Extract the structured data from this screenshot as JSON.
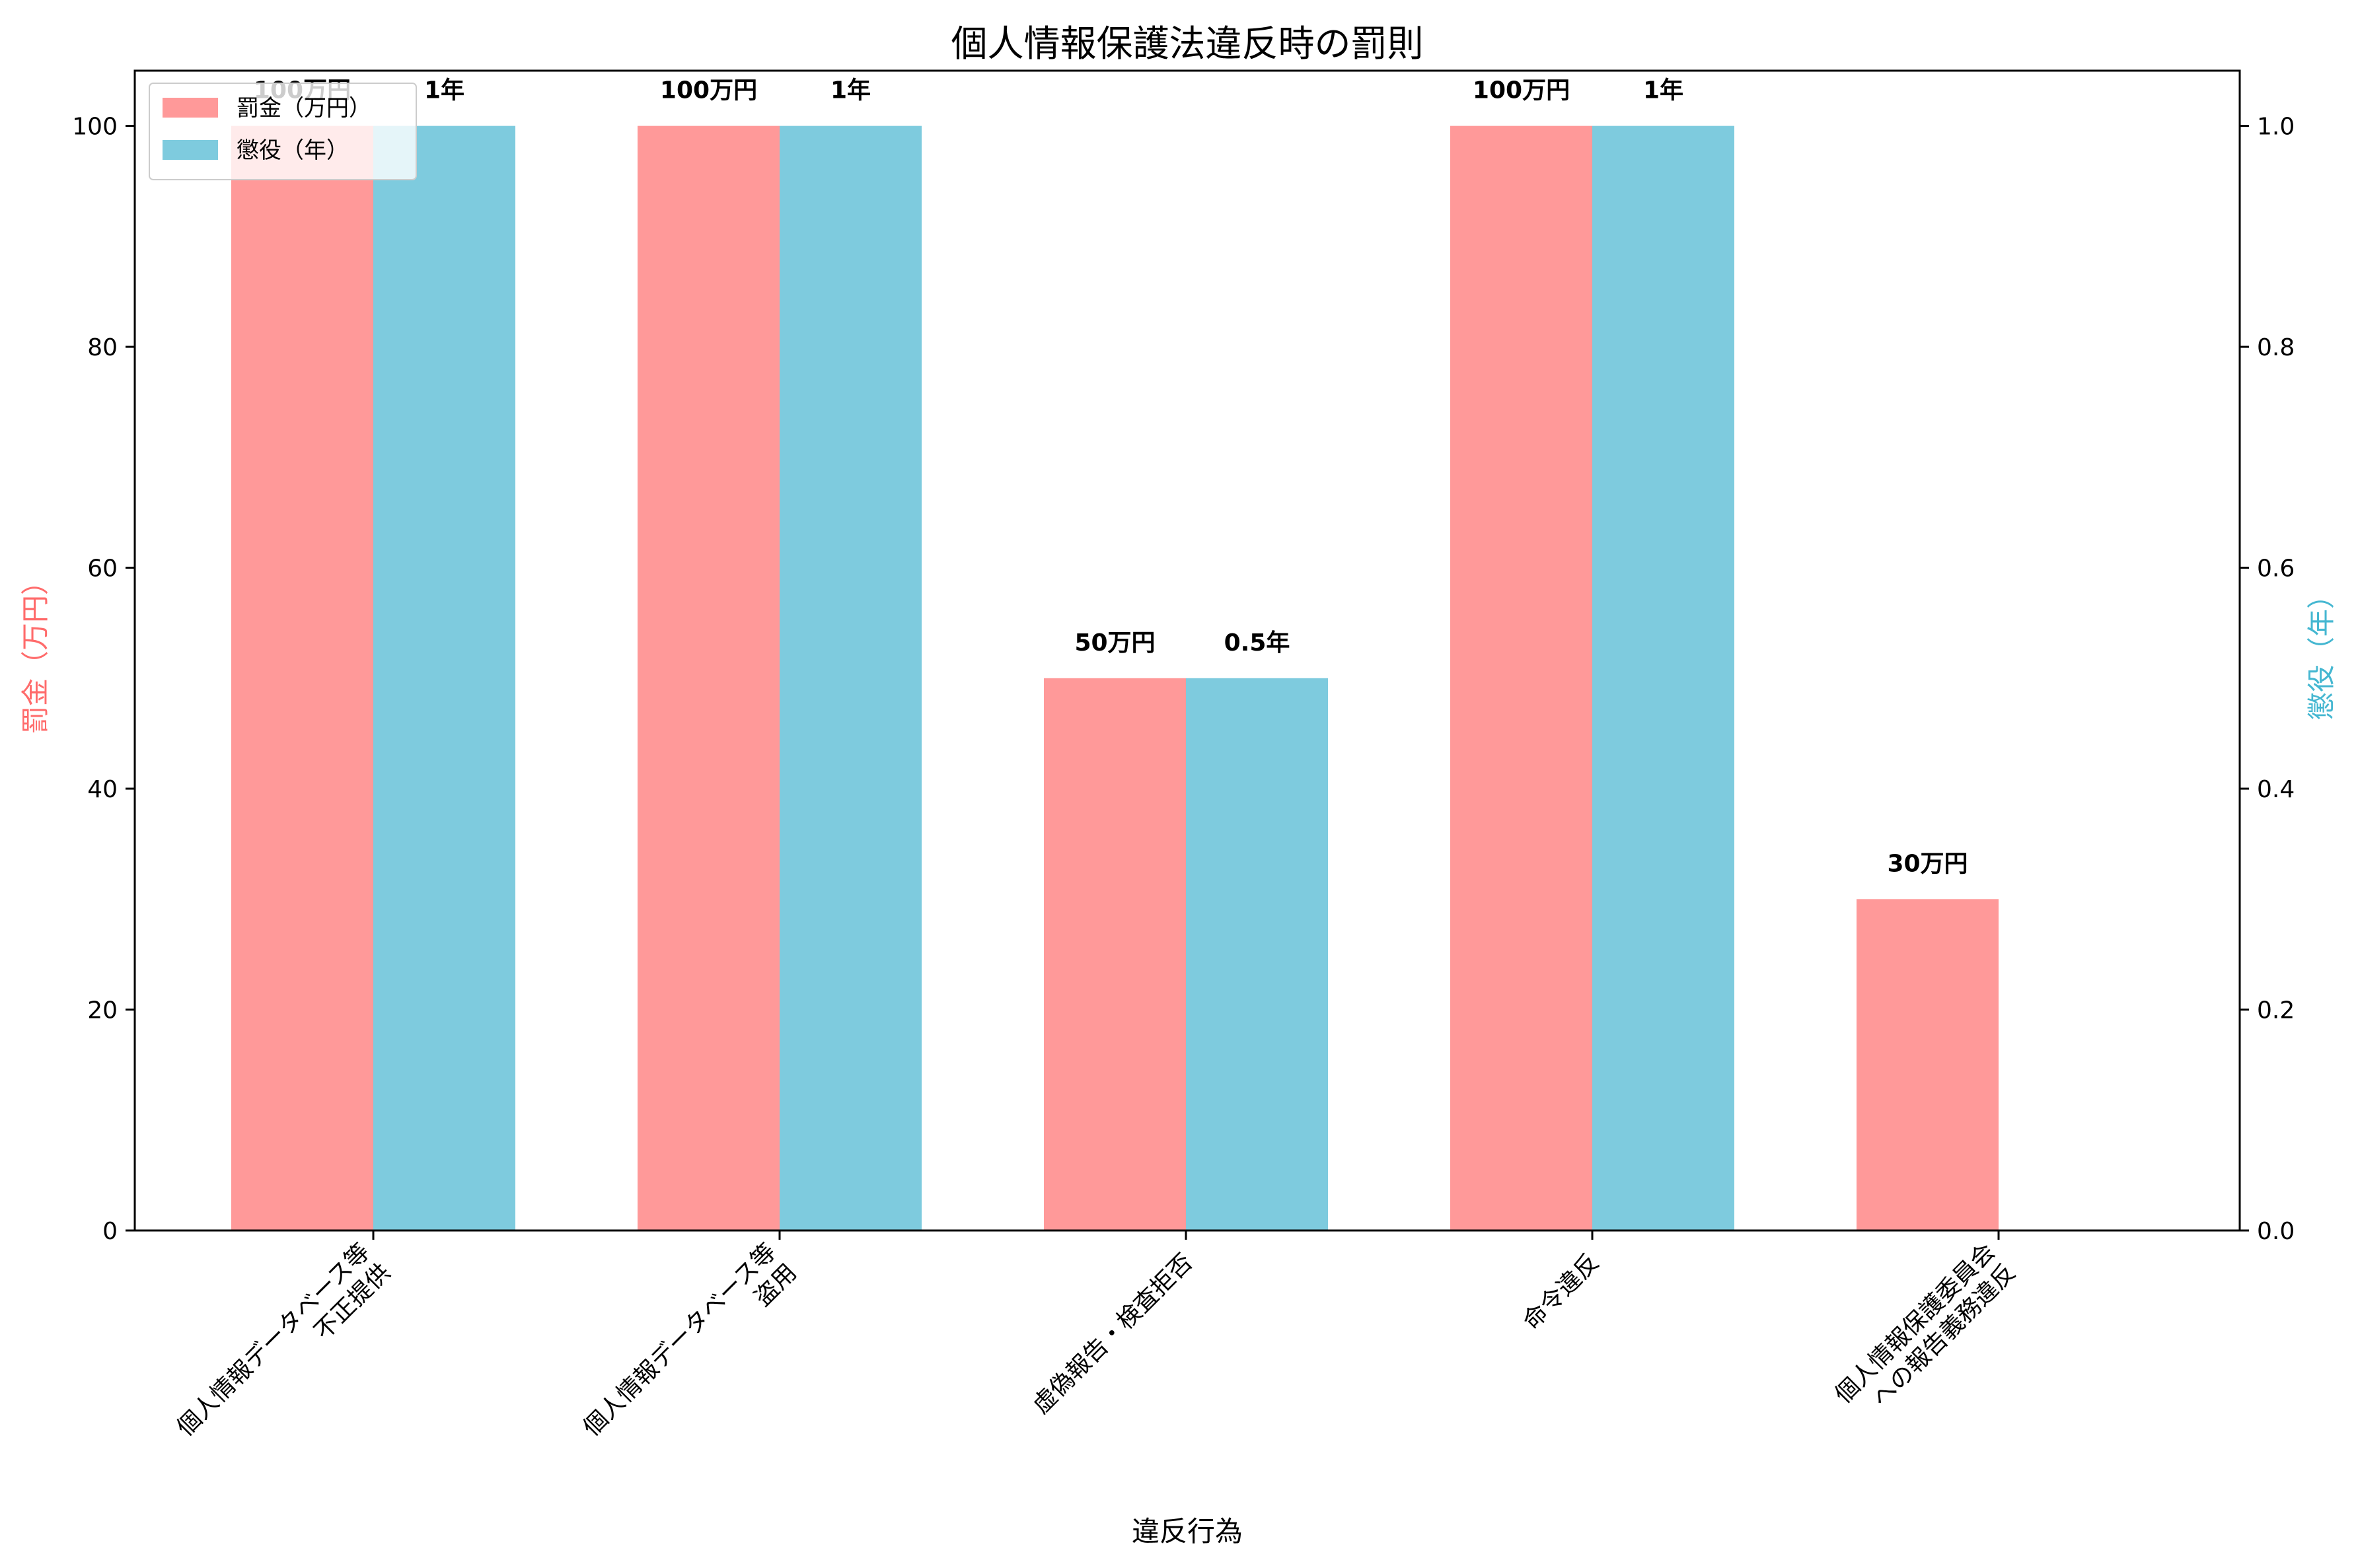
{
  "chart_data": {
    "type": "bar",
    "title": "個人情報保護法違反時の罰則",
    "xlabel": "違反行為",
    "categories": [
      "個人情報データベース等\n不正提供",
      "個人情報データベース等\n盗用",
      "虚偽報告・検査拒否",
      "命令違反",
      "個人情報保護委員会\nへの報告義務違反"
    ],
    "series": [
      {
        "name": "罰金（万円）",
        "axis": "left",
        "color": "#ff9999",
        "values": [
          100,
          100,
          50,
          100,
          30
        ],
        "labels": [
          "100万円",
          "100万円",
          "50万円",
          "100万円",
          "30万円"
        ]
      },
      {
        "name": "懲役（年）",
        "axis": "right",
        "color": "#7ecbde",
        "values": [
          1,
          1,
          0.5,
          1,
          0
        ],
        "labels": [
          "1年",
          "1年",
          "0.5年",
          "1年",
          ""
        ]
      }
    ],
    "y_left": {
      "label": "罰金（万円）",
      "label_color": "#ff6b6b",
      "ylim": [
        0,
        105
      ],
      "ticks": [
        "0",
        "20",
        "40",
        "60",
        "80",
        "100"
      ]
    },
    "y_right": {
      "label": "懲役（年）",
      "label_color": "#45b7d1",
      "ylim": [
        0,
        1.05
      ],
      "ticks": [
        "0.0",
        "0.2",
        "0.4",
        "0.6",
        "0.8",
        "1.0"
      ]
    },
    "legend": "upper-left",
    "grid": false
  }
}
